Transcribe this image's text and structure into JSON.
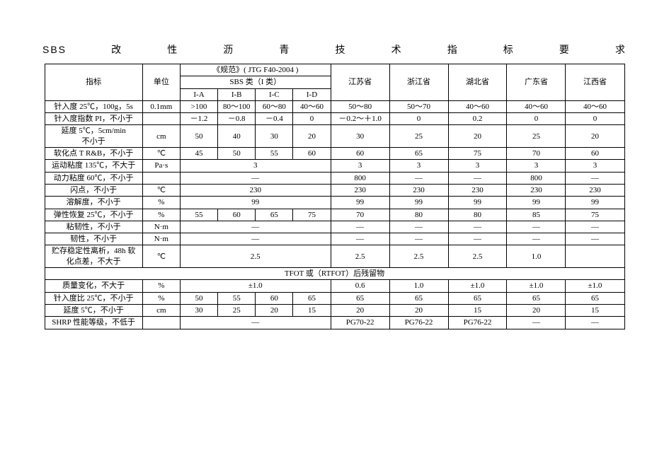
{
  "title": "SBS改性沥青技术指标要求",
  "headers": {
    "indicator": "指标",
    "unit": "单位",
    "spec_title": "《规范》( JTG  F40-2004 )",
    "spec_sub": "SBS 类（I 类）",
    "spec_cols": [
      "I-A",
      "I-B",
      "I-C",
      "I-D"
    ],
    "provinces": [
      "江苏省",
      "浙江省",
      "湖北省",
      "广东省",
      "江西省"
    ]
  },
  "rows": [
    {
      "name": "针入度 25℃，100g，5s",
      "unit": "0.1mm",
      "a": ">100",
      "b": "80～100",
      "c": "60～80",
      "d": "40～60",
      "p": [
        "50～80",
        "50～70",
        "40～60",
        "40～60",
        "40～60"
      ]
    },
    {
      "name": "针入度指数 PI，不小于",
      "unit": "",
      "a": "－1.2",
      "b": "－0.8",
      "c": "－0.4",
      "d": "0",
      "p": [
        "－0.2～＋1.0",
        "0",
        "0.2",
        "0",
        "0"
      ]
    },
    {
      "name": "延度 5℃，5cm/min\n不小于",
      "unit": "cm",
      "a": "50",
      "b": "40",
      "c": "30",
      "d": "20",
      "p": [
        "30",
        "25",
        "20",
        "25",
        "20"
      ]
    },
    {
      "name": "软化点 T R&B，不小于",
      "unit": "℃",
      "a": "45",
      "b": "50",
      "c": "55",
      "d": "60",
      "p": [
        "60",
        "65",
        "75",
        "70",
        "60"
      ]
    },
    {
      "name": "运动粘度 135℃，不大于",
      "unit": "Pa·s",
      "merge4": "3",
      "p": [
        "3",
        "3",
        "3",
        "3",
        "3"
      ]
    },
    {
      "name": "动力粘度 60℃，不小于",
      "unit": "",
      "merge4": "—",
      "p": [
        "800",
        "—",
        "—",
        "800",
        "—"
      ]
    },
    {
      "name": "闪点，不小于",
      "unit": "℃",
      "merge4": "230",
      "p": [
        "230",
        "230",
        "230",
        "230",
        "230"
      ]
    },
    {
      "name": "溶解度，不小于",
      "unit": "%",
      "merge4": "99",
      "p": [
        "99",
        "99",
        "99",
        "99",
        "99"
      ]
    },
    {
      "name": "弹性恢复 25℃，不小于",
      "unit": "%",
      "a": "55",
      "b": "60",
      "c": "65",
      "d": "75",
      "p": [
        "70",
        "80",
        "80",
        "85",
        "75"
      ]
    },
    {
      "name": "粘韧性，不小于",
      "unit": "N·m",
      "merge4": "—",
      "p": [
        "—",
        "—",
        "—",
        "—",
        "—"
      ]
    },
    {
      "name": "韧性，不小于",
      "unit": "N·m",
      "merge4": "—",
      "p": [
        "—",
        "—",
        "—",
        "—",
        "—"
      ]
    },
    {
      "name": "贮存稳定性离析，48h 软\n化点差，不大于",
      "unit": "℃",
      "merge4": "2.5",
      "p": [
        "2.5",
        "2.5",
        "2.5",
        "1.0",
        ""
      ]
    }
  ],
  "section": "TFOT 或（RTFOT）后残留物",
  "rows2": [
    {
      "name": "质量变化，不大于",
      "unit": "%",
      "merge4": "±1.0",
      "p": [
        "0.6",
        "1.0",
        "±1.0",
        "±1.0",
        "±1.0"
      ]
    },
    {
      "name": "针入度比 25℃，不小于",
      "unit": "%",
      "a": "50",
      "b": "55",
      "c": "60",
      "d": "65",
      "p": [
        "65",
        "65",
        "65",
        "65",
        "65"
      ]
    },
    {
      "name": "延度 5℃，不小于",
      "unit": "cm",
      "a": "30",
      "b": "25",
      "c": "20",
      "d": "15",
      "p": [
        "20",
        "20",
        "15",
        "20",
        "15"
      ]
    },
    {
      "name": "SHRP 性能等级，不低于",
      "unit": "",
      "merge4": "—",
      "p": [
        "PG70-22",
        "PG76-22",
        "PG76-22",
        "—",
        "—"
      ]
    }
  ]
}
